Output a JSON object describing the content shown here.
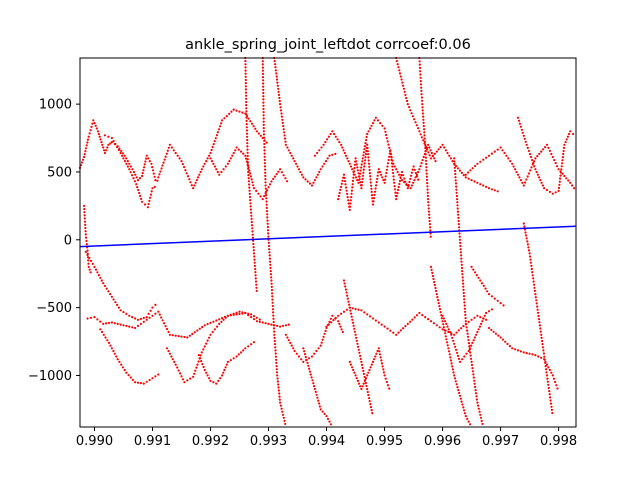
{
  "chart_data": {
    "type": "scatter",
    "title": "ankle_spring_joint_leftdot corrcoef:0.06",
    "xlabel": "",
    "ylabel": "",
    "xlim": [
      0.98975,
      0.9983
    ],
    "ylim": [
      -1380,
      1340
    ],
    "xticks": [
      0.99,
      0.991,
      0.992,
      0.993,
      0.994,
      0.995,
      0.996,
      0.997,
      0.998
    ],
    "xtick_labels": [
      "0.990",
      "0.991",
      "0.992",
      "0.993",
      "0.994",
      "0.995",
      "0.996",
      "0.997",
      "0.998"
    ],
    "yticks": [
      -1000,
      -500,
      0,
      500,
      1000
    ],
    "ytick_labels": [
      "−1000",
      "−500",
      "0",
      "500",
      "1000"
    ],
    "grid": false,
    "colors": {
      "scatter": "#ff0000",
      "fit_line": "#0000ff"
    },
    "fit_line": {
      "x": [
        0.98975,
        0.9983
      ],
      "y": [
        -50,
        100
      ]
    },
    "scatter_traces": [
      {
        "x": [
          0.98975,
          0.98982,
          0.9899,
          0.98998,
          0.99006,
          0.99012,
          0.99018,
          0.99024,
          0.9903,
          0.9904,
          0.99052,
          0.9906,
          0.99068,
          0.99075,
          0.99082,
          0.9909,
          0.99098,
          0.99105,
          0.99112
        ],
        "y": [
          530,
          610,
          760,
          880,
          800,
          720,
          640,
          700,
          720,
          690,
          620,
          560,
          500,
          440,
          470,
          620,
          560,
          440,
          430
        ]
      },
      {
        "x": [
          0.99018,
          0.9903,
          0.99045,
          0.9906,
          0.99072,
          0.99082,
          0.99092,
          0.991,
          0.99108
        ],
        "y": [
          770,
          750,
          640,
          520,
          410,
          280,
          240,
          380,
          400
        ]
      },
      {
        "x": [
          0.98982,
          0.98985,
          0.98988,
          0.9899,
          0.98995
        ],
        "y": [
          250,
          40,
          -80,
          -200,
          -260
        ]
      },
      {
        "x": [
          0.98985,
          0.99,
          0.99015,
          0.9903,
          0.99045,
          0.9906,
          0.99075,
          0.9909,
          0.991,
          0.9911
        ],
        "y": [
          -90,
          -200,
          -320,
          -420,
          -520,
          -560,
          -590,
          -570,
          -500,
          -460
        ]
      },
      {
        "x": [
          0.98988,
          0.99,
          0.99015,
          0.9903,
          0.9905,
          0.9907,
          0.9909,
          0.9911,
          0.9913,
          0.9916,
          0.9919,
          0.9923,
          0.9926,
          0.9928,
          0.993,
          0.9932,
          0.9934
        ],
        "y": [
          -580,
          -570,
          -620,
          -610,
          -630,
          -650,
          -590,
          -530,
          -700,
          -720,
          -630,
          -560,
          -540,
          -600,
          -620,
          -640,
          -620
        ]
      },
      {
        "x": [
          0.9901,
          0.99025,
          0.9904,
          0.99055,
          0.9907,
          0.99085,
          0.991,
          0.99115
        ],
        "y": [
          -660,
          -760,
          -880,
          -980,
          -1050,
          -1060,
          -1020,
          -980
        ]
      },
      {
        "x": [
          0.9911,
          0.9913,
          0.9915,
          0.9917,
          0.99185,
          0.992,
          0.9922,
          0.9924,
          0.9926,
          0.9928,
          0.993
        ],
        "y": [
          460,
          700,
          580,
          380,
          520,
          640,
          880,
          960,
          930,
          800,
          700
        ]
      },
      {
        "x": [
          0.99125,
          0.9914,
          0.99155,
          0.9917,
          0.99185,
          0.992,
          0.99215,
          0.9923,
          0.9925,
          0.9927,
          0.9929
        ],
        "y": [
          -800,
          -920,
          -1050,
          -1010,
          -830,
          -700,
          -620,
          -560,
          -530,
          -550,
          -600
        ]
      },
      {
        "x": [
          0.9918,
          0.9919,
          0.992,
          0.9921,
          0.9922,
          0.9923,
          0.99245,
          0.9926,
          0.9928
        ],
        "y": [
          -850,
          -960,
          -1040,
          -1060,
          -1000,
          -900,
          -860,
          -800,
          -740
        ]
      },
      {
        "x": [
          0.992,
          0.99215,
          0.9923,
          0.99245,
          0.9926,
          0.99275,
          0.9929,
          0.99305,
          0.9932,
          0.99335
        ],
        "y": [
          600,
          480,
          560,
          680,
          620,
          380,
          300,
          430,
          520,
          410
        ]
      },
      {
        "x": [
          0.9926,
          0.99262,
          0.99265,
          0.9927,
          0.99275,
          0.9928
        ],
        "y": [
          1340,
          900,
          500,
          200,
          -100,
          -400
        ]
      },
      {
        "x": [
          0.9929,
          0.99292,
          0.99295,
          0.993,
          0.99305,
          0.9931,
          0.99315,
          0.9932,
          0.9933
        ],
        "y": [
          1340,
          800,
          400,
          0,
          -300,
          -700,
          -1000,
          -1200,
          -1380
        ]
      },
      {
        "x": [
          0.9931,
          0.9932,
          0.9933,
          0.99345,
          0.9936,
          0.99375,
          0.9939,
          0.99405,
          0.9942
        ],
        "y": [
          1340,
          1000,
          700,
          580,
          460,
          400,
          520,
          620,
          640
        ]
      },
      {
        "x": [
          0.9933,
          0.99345,
          0.9936,
          0.99375,
          0.9939,
          0.994,
          0.9941,
          0.9942,
          0.9943
        ],
        "y": [
          -700,
          -820,
          -900,
          -860,
          -780,
          -650,
          -560,
          -600,
          -700
        ]
      },
      {
        "x": [
          0.9936,
          0.9937,
          0.9938,
          0.9939,
          0.994,
          0.9941
        ],
        "y": [
          -800,
          -950,
          -1100,
          -1250,
          -1300,
          -1380
        ]
      },
      {
        "x": [
          0.9938,
          0.99395,
          0.9941,
          0.99425,
          0.9944,
          0.99455,
          0.9947,
          0.99485,
          0.995,
          0.99515,
          0.9953,
          0.99545,
          0.9956,
          0.99575,
          0.9959
        ],
        "y": [
          620,
          700,
          800,
          700,
          560,
          420,
          780,
          900,
          820,
          560,
          440,
          380,
          520,
          700,
          560
        ]
      },
      {
        "x": [
          0.9942,
          0.9943,
          0.9944,
          0.9945,
          0.9946,
          0.9947,
          0.9948,
          0.9949,
          0.995,
          0.9951,
          0.9952,
          0.9953,
          0.9954,
          0.9955,
          0.9956
        ],
        "y": [
          300,
          480,
          220,
          600,
          380,
          700,
          260,
          520,
          420,
          660,
          300,
          500,
          380,
          540,
          420
        ]
      },
      {
        "x": [
          0.994,
          0.9942,
          0.9944,
          0.9946,
          0.9948,
          0.995,
          0.9952,
          0.9954,
          0.9956,
          0.9958,
          0.996,
          0.9962,
          0.9964,
          0.9966,
          0.9968
        ],
        "y": [
          -640,
          -560,
          -500,
          -520,
          -580,
          -640,
          -700,
          -620,
          -540,
          -600,
          -660,
          -700,
          -620,
          -560,
          -600
        ]
      },
      {
        "x": [
          0.9944,
          0.9945,
          0.9946,
          0.9947,
          0.9948,
          0.9949,
          0.995,
          0.9951
        ],
        "y": [
          -900,
          -1000,
          -1100,
          -1000,
          -900,
          -800,
          -1000,
          -1120
        ]
      },
      {
        "x": [
          0.9943,
          0.9944,
          0.9945,
          0.9946,
          0.9947,
          0.9948
        ],
        "y": [
          -300,
          -500,
          -700,
          -900,
          -1100,
          -1300
        ]
      },
      {
        "x": [
          0.9952,
          0.9954,
          0.9956,
          0.9958,
          0.996,
          0.9962,
          0.9964,
          0.9966,
          0.9968,
          0.997
        ],
        "y": [
          1340,
          1000,
          800,
          600,
          700,
          560,
          460,
          420,
          380,
          350
        ]
      },
      {
        "x": [
          0.9956,
          0.99565,
          0.9957,
          0.99575,
          0.9958
        ],
        "y": [
          1340,
          1000,
          700,
          300,
          0
        ]
      },
      {
        "x": [
          0.9962,
          0.99625,
          0.9963,
          0.99635,
          0.9964,
          0.9965,
          0.9966,
          0.9967
        ],
        "y": [
          600,
          300,
          0,
          -300,
          -600,
          -900,
          -1200,
          -1380
        ]
      },
      {
        "x": [
          0.9958,
          0.9959,
          0.996,
          0.9961,
          0.9962,
          0.9963,
          0.9964,
          0.9965
        ],
        "y": [
          -200,
          -400,
          -600,
          -800,
          -1000,
          -1150,
          -1300,
          -1380
        ]
      },
      {
        "x": [
          0.996,
          0.99615,
          0.9963,
          0.99645,
          0.9966,
          0.99675,
          0.9969
        ],
        "y": [
          -560,
          -700,
          -900,
          -820,
          -680,
          -540,
          -500
        ]
      },
      {
        "x": [
          0.9964,
          0.9966,
          0.9968,
          0.997,
          0.9972,
          0.9974,
          0.9976,
          0.9978,
          0.998,
          0.9982,
          0.9983
        ],
        "y": [
          480,
          560,
          620,
          680,
          560,
          400,
          600,
          700,
          520,
          420,
          360
        ]
      },
      {
        "x": [
          0.9965,
          0.99665,
          0.9968,
          0.99695,
          0.9971
        ],
        "y": [
          -200,
          -300,
          -400,
          -450,
          -500
        ]
      },
      {
        "x": [
          0.9968,
          0.997,
          0.9972,
          0.9974,
          0.9976,
          0.99775,
          0.9979,
          0.998
        ],
        "y": [
          -650,
          -720,
          -800,
          -830,
          -850,
          -880,
          -1000,
          -1120
        ]
      },
      {
        "x": [
          0.9973,
          0.99745,
          0.9976,
          0.99775,
          0.9979,
          0.998,
          0.9981,
          0.9982,
          0.9983
        ],
        "y": [
          900,
          700,
          520,
          380,
          340,
          360,
          700,
          800,
          760
        ]
      },
      {
        "x": [
          0.9974,
          0.9975,
          0.9976,
          0.9977,
          0.9978,
          0.9979
        ],
        "y": [
          120,
          -100,
          -400,
          -700,
          -1000,
          -1300
        ]
      }
    ]
  }
}
